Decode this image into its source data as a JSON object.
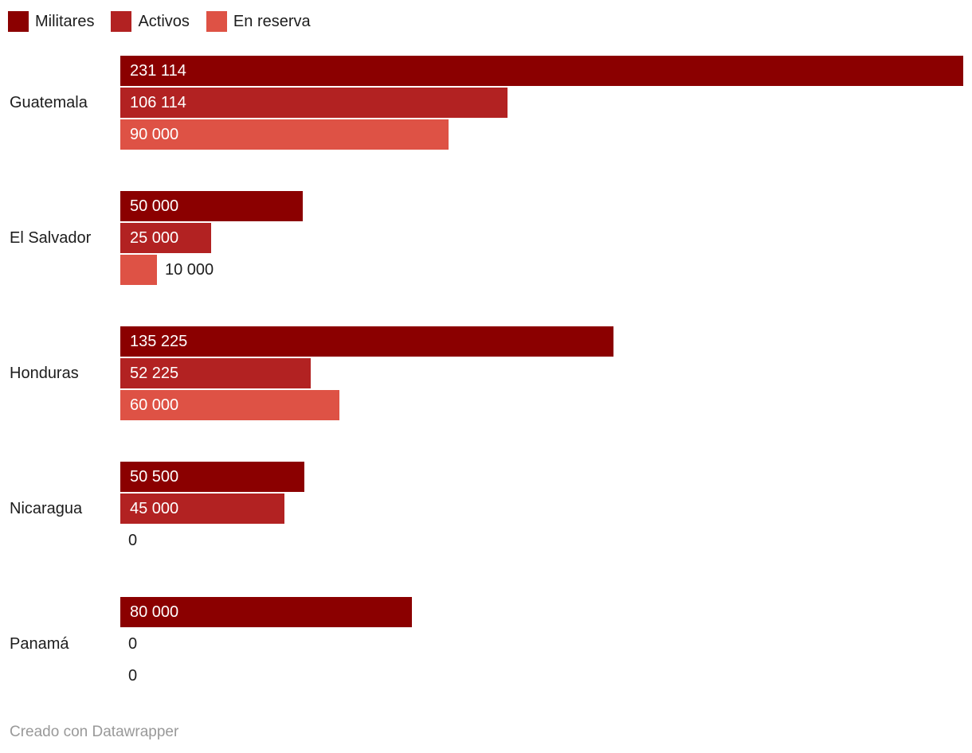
{
  "colors": {
    "militares": "#8b0000",
    "activos": "#b22222",
    "en_reserva": "#de5245",
    "text_dark": "#1d1d1d",
    "value_label_inside": "#ffffff",
    "value_label_outside": "#1d1d1d",
    "footer_gray": "#999999",
    "background": "#ffffff"
  },
  "legend": {
    "items": [
      {
        "label": "Militares",
        "color": "#8b0000"
      },
      {
        "label": "Activos",
        "color": "#b22222"
      },
      {
        "label": "En reserva",
        "color": "#de5245"
      }
    ]
  },
  "chart_data": {
    "type": "bar",
    "orientation": "horizontal",
    "title": "",
    "xlabel": "",
    "ylabel": "",
    "grid": false,
    "legend_position": "top",
    "xmax": 231114,
    "categories": [
      "Guatemala",
      "El Salvador",
      "Honduras",
      "Nicaragua",
      "Panamá"
    ],
    "series": [
      {
        "name": "Militares",
        "color": "#8b0000",
        "values": [
          231114,
          50000,
          135225,
          50500,
          80000
        ],
        "labels": [
          "231 114",
          "50 000",
          "135 225",
          "50 500",
          "80 000"
        ]
      },
      {
        "name": "Activos",
        "color": "#b22222",
        "values": [
          106114,
          25000,
          52225,
          45000,
          0
        ],
        "labels": [
          "106 114",
          "25 000",
          "52 225",
          "45 000",
          "0"
        ]
      },
      {
        "name": "En reserva",
        "color": "#de5245",
        "values": [
          90000,
          10000,
          60000,
          0,
          0
        ],
        "labels": [
          "90 000",
          "10 000",
          "60 000",
          "0",
          "0"
        ]
      }
    ]
  },
  "footer": {
    "credit": "Creado con Datawrapper"
  }
}
